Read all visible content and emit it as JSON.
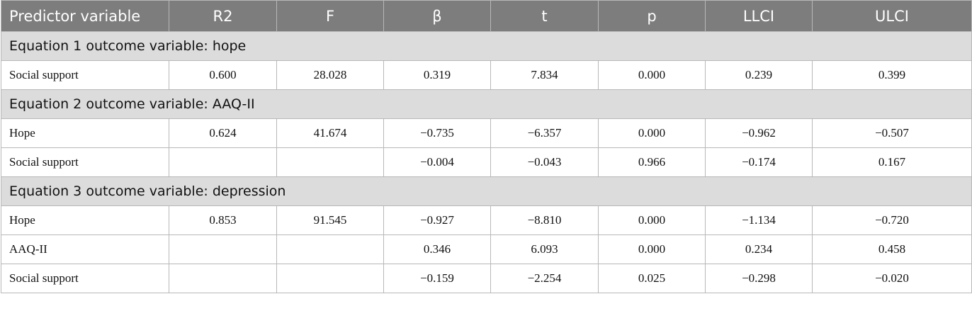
{
  "headers": [
    "Predictor variable",
    "R2",
    "F",
    "β",
    "t",
    "p",
    "LLCI",
    "ULCI"
  ],
  "sections": [
    {
      "title": "Equation 1 outcome variable: hope",
      "rows": [
        [
          "Social support",
          "0.600",
          "28.028",
          "0.319",
          "7.834",
          "0.000",
          "0.239",
          "0.399"
        ]
      ]
    },
    {
      "title": "Equation 2 outcome variable: AAQ-II",
      "rows": [
        [
          "Hope",
          "0.624",
          "41.674",
          "−0.735",
          "−6.357",
          "0.000",
          "−0.962",
          "−0.507"
        ],
        [
          "Social support",
          "",
          "",
          "−0.004",
          "−0.043",
          "0.966",
          "−0.174",
          "0.167"
        ]
      ]
    },
    {
      "title": "Equation 3 outcome variable: depression",
      "rows": [
        [
          "Hope",
          "0.853",
          "91.545",
          "−0.927",
          "−8.810",
          "0.000",
          "−1.134",
          "−0.720"
        ],
        [
          "AAQ-II",
          "",
          "",
          "0.346",
          "6.093",
          "0.000",
          "0.234",
          "0.458"
        ],
        [
          "Social support",
          "",
          "",
          "−0.159",
          "−2.254",
          "0.025",
          "−0.298",
          "−0.020"
        ]
      ]
    }
  ]
}
